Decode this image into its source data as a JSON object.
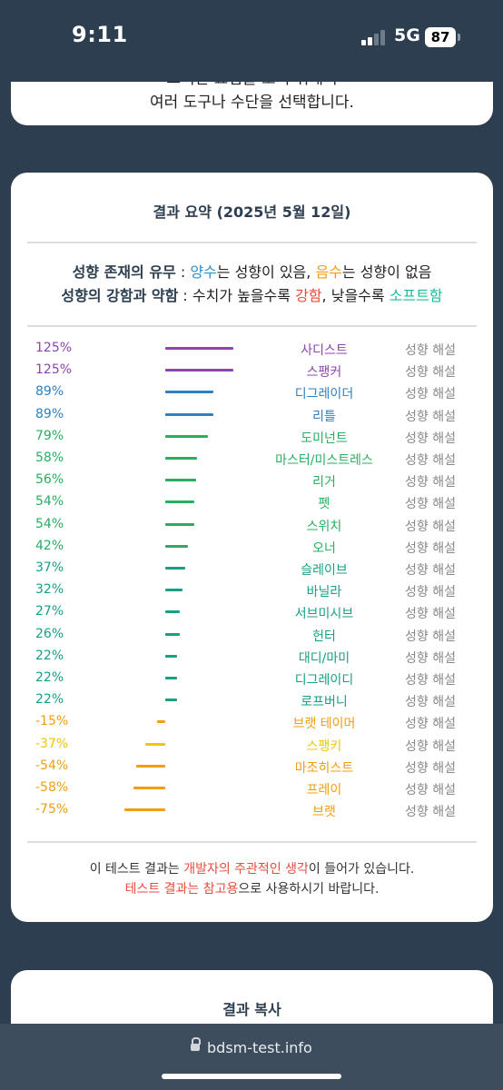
{
  "status": {
    "time": "9:11",
    "network": "5G",
    "battery": "87"
  },
  "top_card": {
    "cut_line": "그러한 요법을 포기 위해서",
    "line": "여러 도구나 수단을 선택합니다."
  },
  "summary": {
    "title": "결과 요약 (2025년 5월 12일)",
    "legend1": {
      "label": "성향 존재의 유무",
      "sep": " : ",
      "plus": "양수",
      "plus_text": "는 성향이 있음, ",
      "minus": "음수",
      "minus_text": "는 성향이 없음"
    },
    "legend2": {
      "label": "성향의 강함과 약함",
      "sep": " : 수치가 높을수록 ",
      "strong": "강함",
      "mid": ", 낮을수록 ",
      "soft": "소프트함"
    },
    "explain_label": "성향 해설",
    "rows": [
      {
        "percent": "125%",
        "value": 125,
        "name": "사디스트",
        "color": "#8e44ad"
      },
      {
        "percent": "125%",
        "value": 125,
        "name": "스팽커",
        "color": "#8e44ad"
      },
      {
        "percent": "89%",
        "value": 89,
        "name": "디그레이더",
        "color": "#2e7fbf"
      },
      {
        "percent": "89%",
        "value": 89,
        "name": "리틀",
        "color": "#2e7fbf"
      },
      {
        "percent": "79%",
        "value": 79,
        "name": "도미넌트",
        "color": "#27ae60"
      },
      {
        "percent": "58%",
        "value": 58,
        "name": "마스터/미스트레스",
        "color": "#27ae60"
      },
      {
        "percent": "56%",
        "value": 56,
        "name": "리거",
        "color": "#27ae60"
      },
      {
        "percent": "54%",
        "value": 54,
        "name": "펫",
        "color": "#27ae60"
      },
      {
        "percent": "54%",
        "value": 54,
        "name": "스위치",
        "color": "#27ae60"
      },
      {
        "percent": "42%",
        "value": 42,
        "name": "오너",
        "color": "#27ae60"
      },
      {
        "percent": "37%",
        "value": 37,
        "name": "슬레이브",
        "color": "#16a085"
      },
      {
        "percent": "32%",
        "value": 32,
        "name": "바닐라",
        "color": "#16a085"
      },
      {
        "percent": "27%",
        "value": 27,
        "name": "서브미시브",
        "color": "#16a085"
      },
      {
        "percent": "26%",
        "value": 26,
        "name": "헌터",
        "color": "#16a085"
      },
      {
        "percent": "22%",
        "value": 22,
        "name": "대디/마미",
        "color": "#16a085"
      },
      {
        "percent": "22%",
        "value": 22,
        "name": "디그레이디",
        "color": "#16a085"
      },
      {
        "percent": "22%",
        "value": 22,
        "name": "로프버니",
        "color": "#16a085"
      },
      {
        "percent": "-15%",
        "value": -15,
        "name": "브랫 테이머",
        "color": "#f39c12"
      },
      {
        "percent": "-37%",
        "value": -37,
        "name": "스팽키",
        "color": "#f1c40f"
      },
      {
        "percent": "-54%",
        "value": -54,
        "name": "마조히스트",
        "color": "#f39c12"
      },
      {
        "percent": "-58%",
        "value": -58,
        "name": "프레이",
        "color": "#f39c12"
      },
      {
        "percent": "-75%",
        "value": -75,
        "name": "브랫",
        "color": "#f39c12"
      }
    ],
    "note1": {
      "a": "이 테스트 결과는 ",
      "b": "개발자의 주관적인 생각",
      "c": "이 들어가 있습니다."
    },
    "note2": {
      "a": "테스트 결과는 참고용",
      "b": "으로 사용하시기 바랍니다."
    }
  },
  "copy_card": {
    "title": "결과 복사"
  },
  "browser": {
    "url": "bdsm-test.info"
  }
}
